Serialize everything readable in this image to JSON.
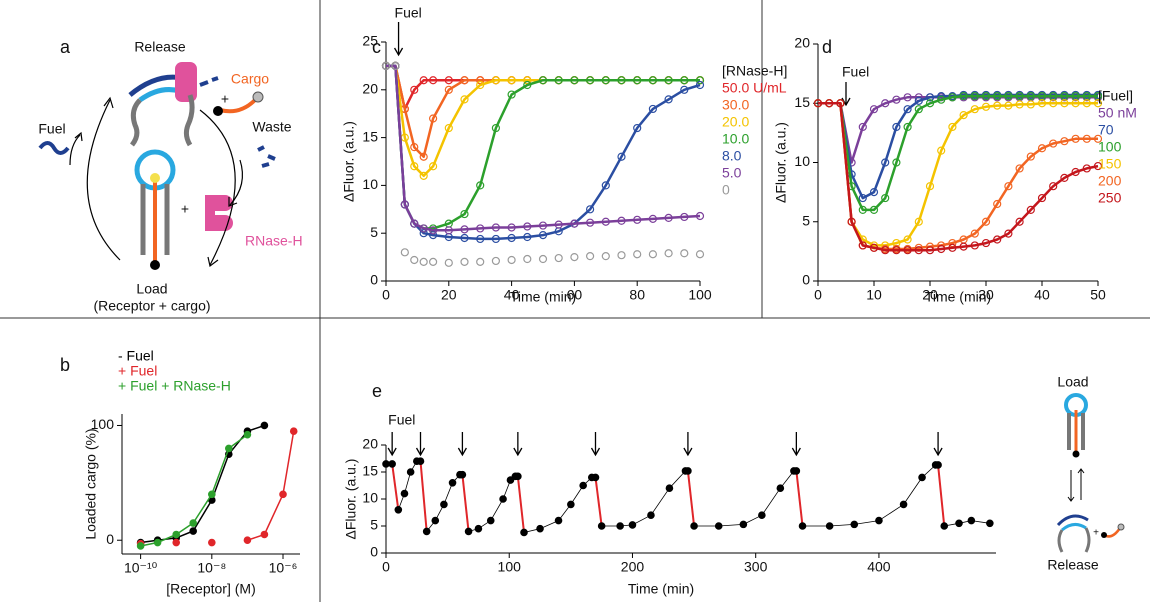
{
  "diagram_a": {
    "panel_label": "a",
    "release": "Release",
    "cargo": "Cargo",
    "fuel": "Fuel",
    "waste": "Waste",
    "rnase_h": "RNase-H",
    "load": "Load",
    "load_note": "(Receptor + cargo)",
    "plus_signs": [
      "+",
      "+"
    ]
  },
  "diagram_e": {
    "load": "Load",
    "release": "Release",
    "plus": "+"
  },
  "chart_data": [
    {
      "type": "line",
      "panel_label": "c",
      "xlabel": "Time (min)",
      "ylabel": "ΔFluor. (a.u.)",
      "annotation": "Fuel",
      "fuel_times": [
        4
      ],
      "legend_title": "[RNase-H]",
      "marker": "open",
      "xlim": [
        0,
        100
      ],
      "xticks": [
        0,
        20,
        40,
        60,
        80,
        100
      ],
      "ylim": [
        0,
        25
      ],
      "yticks": [
        0,
        5,
        10,
        15,
        20,
        25
      ],
      "x": [
        0,
        3,
        6,
        9,
        12,
        15,
        20,
        25,
        30,
        35,
        40,
        45,
        50,
        55,
        60,
        65,
        70,
        75,
        80,
        85,
        90,
        95,
        100
      ],
      "series": [
        {
          "name": "50.0 U/mL",
          "color": "#e0262a",
          "values": [
            22.5,
            22.5,
            18,
            20,
            21,
            21,
            21,
            21,
            21,
            21,
            21,
            21,
            21,
            21,
            21,
            21,
            21,
            21,
            21,
            21,
            21,
            21,
            21
          ]
        },
        {
          "name": "30.0",
          "color": "#f26522",
          "values": [
            22.5,
            22.5,
            18,
            14,
            13,
            17,
            20,
            21,
            21,
            21,
            21,
            21,
            21,
            21,
            21,
            21,
            21,
            21,
            21,
            21,
            21,
            21,
            21
          ]
        },
        {
          "name": "20.0",
          "color": "#f4c300",
          "values": [
            22.5,
            22.5,
            15,
            12,
            11,
            12,
            16,
            19,
            20.5,
            21,
            21,
            21,
            21,
            21,
            21,
            21,
            21,
            21,
            21,
            21,
            21,
            21,
            21
          ]
        },
        {
          "name": "10.0",
          "color": "#2ca02c",
          "values": [
            22.5,
            22.5,
            8,
            6,
            5.5,
            5.5,
            6,
            7,
            10,
            16,
            19.5,
            20.5,
            21,
            21,
            21,
            21,
            21,
            21,
            21,
            21,
            21,
            21,
            21
          ]
        },
        {
          "name": "8.0",
          "color": "#2b4ea2",
          "values": [
            22.5,
            22.5,
            8,
            6,
            5,
            4.8,
            4.6,
            4.5,
            4.4,
            4.4,
            4.5,
            4.6,
            4.8,
            5.2,
            6,
            7.5,
            10,
            13,
            16,
            18,
            19,
            20,
            20.5
          ]
        },
        {
          "name": "5.0",
          "color": "#7b3f9a",
          "values": [
            22.5,
            22.5,
            8,
            6,
            5.5,
            5.3,
            5.3,
            5.4,
            5.5,
            5.6,
            5.6,
            5.7,
            5.8,
            5.9,
            6,
            6.1,
            6.2,
            6.3,
            6.4,
            6.5,
            6.6,
            6.7,
            6.8
          ]
        },
        {
          "name": "0",
          "color": "#9a9a9a",
          "fit_line": false,
          "values": [
            22.5,
            22.5,
            3,
            2.2,
            2,
            2,
            1.9,
            2,
            2,
            2.1,
            2.2,
            2.3,
            2.3,
            2.4,
            2.5,
            2.6,
            2.6,
            2.7,
            2.8,
            2.8,
            2.9,
            2.9,
            2.8
          ]
        }
      ]
    },
    {
      "type": "line",
      "panel_label": "d",
      "xlabel": "Time (min)",
      "ylabel": "ΔFluor. (a.u.)",
      "annotation": "Fuel",
      "fuel_times": [
        5
      ],
      "legend_title": "[Fuel]",
      "marker": "open",
      "xlim": [
        0,
        50
      ],
      "xticks": [
        0,
        10,
        20,
        30,
        40,
        50
      ],
      "ylim": [
        0,
        20
      ],
      "yticks": [
        0,
        5,
        10,
        15,
        20
      ],
      "x": [
        0,
        2,
        4,
        6,
        8,
        10,
        12,
        14,
        16,
        18,
        20,
        22,
        24,
        26,
        28,
        30,
        32,
        34,
        36,
        38,
        40,
        42,
        44,
        46,
        48,
        50
      ],
      "series": [
        {
          "name": "50 nM",
          "color": "#7b3f9a",
          "values": [
            15,
            15,
            15,
            10,
            13,
            14.5,
            15,
            15.3,
            15.5,
            15.5,
            15.5,
            15.5,
            15.5,
            15.5,
            15.5,
            15.5,
            15.5,
            15.5,
            15.5,
            15.5,
            15.5,
            15.5,
            15.5,
            15.5,
            15.5,
            15.5
          ]
        },
        {
          "name": "70",
          "color": "#2b4ea2",
          "values": [
            15,
            15,
            15,
            9,
            7,
            7.5,
            10,
            13,
            14.5,
            15.2,
            15.5,
            15.6,
            15.6,
            15.7,
            15.7,
            15.7,
            15.7,
            15.7,
            15.7,
            15.7,
            15.7,
            15.7,
            15.7,
            15.7,
            15.7,
            15.7
          ]
        },
        {
          "name": "100",
          "color": "#2ca02c",
          "values": [
            15,
            15,
            15,
            8,
            6,
            6,
            7,
            10,
            13,
            14.5,
            15,
            15.3,
            15.5,
            15.6,
            15.6,
            15.6,
            15.6,
            15.6,
            15.6,
            15.6,
            15.6,
            15.6,
            15.6,
            15.6,
            15.6,
            15.6
          ]
        },
        {
          "name": "150",
          "color": "#f4c300",
          "values": [
            15,
            15,
            15,
            5,
            3.5,
            3,
            3,
            3.2,
            3.5,
            5,
            8,
            11,
            13,
            14,
            14.5,
            14.7,
            14.8,
            14.8,
            14.9,
            14.9,
            15,
            15,
            15,
            15,
            15,
            15
          ]
        },
        {
          "name": "200",
          "color": "#f26522",
          "values": [
            15,
            15,
            15,
            5,
            3,
            2.8,
            2.7,
            2.7,
            2.7,
            2.8,
            2.9,
            3,
            3.2,
            3.5,
            4,
            5,
            6.5,
            8,
            9.5,
            10.5,
            11.2,
            11.6,
            11.8,
            12,
            12,
            12
          ]
        },
        {
          "name": "250",
          "color": "#c4161c",
          "values": [
            15,
            15,
            15,
            5,
            3,
            2.8,
            2.6,
            2.6,
            2.6,
            2.6,
            2.6,
            2.7,
            2.8,
            2.9,
            3,
            3.2,
            3.5,
            4,
            5,
            6,
            7,
            8,
            8.7,
            9.2,
            9.5,
            9.7
          ]
        }
      ]
    },
    {
      "type": "scatter",
      "panel_label": "b",
      "xlabel": "[Receptor] (M)",
      "ylabel": "Loaded cargo (%)",
      "xlog": true,
      "marker": "filled",
      "xlim": [
        3e-11,
        3e-06
      ],
      "xticks": [
        {
          "value": 1e-10,
          "label": "10⁻¹⁰"
        },
        {
          "value": 1e-08,
          "label": "10⁻⁸"
        },
        {
          "value": 1e-06,
          "label": "10⁻⁶"
        }
      ],
      "ylim": [
        -12,
        110
      ],
      "yticks": [
        0,
        100
      ],
      "x": [
        1e-10,
        3e-10,
        1e-09,
        3e-09,
        1e-08,
        3e-08,
        1e-07,
        3e-07,
        1e-06,
        2e-06
      ],
      "series": [
        {
          "name": "- Fuel",
          "color": "#000000",
          "values": [
            -2,
            0,
            2,
            8,
            35,
            75,
            95,
            100,
            null,
            null
          ]
        },
        {
          "name": "+ Fuel",
          "color": "#e0262a",
          "values": [
            -3,
            null,
            -2,
            null,
            -2,
            null,
            0,
            5,
            40,
            95
          ]
        },
        {
          "name": "+ Fuel + RNase-H",
          "color": "#2ca02c",
          "values": [
            -5,
            -2,
            5,
            15,
            40,
            80,
            92,
            null,
            null,
            null
          ]
        }
      ]
    },
    {
      "type": "line",
      "panel_label": "e",
      "xlabel": "Time (min)",
      "ylabel": "ΔFluor. (a.u.)",
      "marker": "filled",
      "annotation": "Fuel",
      "fuel_times": [
        5,
        28,
        62,
        107,
        170,
        245,
        333,
        448
      ],
      "drop_color": "#e0262a",
      "xlim": [
        0,
        495
      ],
      "xticks": [
        0,
        100,
        200,
        300,
        400
      ],
      "ylim": [
        0,
        20
      ],
      "yticks": [
        0,
        5,
        10,
        15,
        20
      ],
      "x": [
        0,
        5,
        10,
        15,
        20,
        25,
        28,
        33,
        40,
        47,
        54,
        60,
        62,
        67,
        75,
        85,
        95,
        101,
        105,
        107,
        112,
        125,
        140,
        150,
        160,
        167,
        170,
        175,
        190,
        200,
        215,
        230,
        243,
        245,
        250,
        270,
        290,
        305,
        320,
        331,
        333,
        338,
        360,
        380,
        400,
        420,
        435,
        446,
        448,
        453,
        465,
        475,
        490
      ],
      "series": [
        {
          "color": "#000000",
          "values": [
            16.5,
            16.5,
            8,
            11,
            15,
            17,
            17,
            4,
            6,
            9,
            13,
            14.5,
            14.5,
            4,
            4.5,
            6,
            10,
            13.5,
            14.2,
            14.2,
            3.8,
            4.5,
            6,
            9,
            12.5,
            14,
            14,
            5,
            5,
            5.2,
            7,
            12,
            15.2,
            15.2,
            5,
            5,
            5.3,
            7,
            12,
            15.2,
            15.2,
            5,
            5,
            5.3,
            6,
            9,
            14,
            16.3,
            16.3,
            5,
            5.5,
            6,
            5.5
          ]
        }
      ]
    }
  ]
}
